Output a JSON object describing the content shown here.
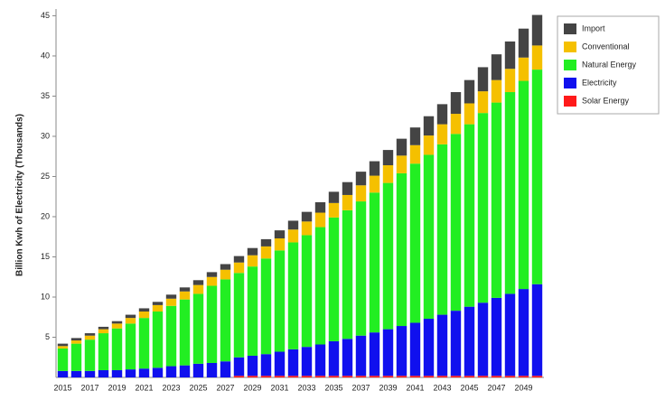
{
  "chart_data": {
    "type": "stacked_bar",
    "y_label": "Billion Kwh of Electricity (Thousands)",
    "categories": [
      "2015",
      null,
      "2017",
      null,
      "2019",
      null,
      "2021",
      null,
      "2023",
      null,
      "2025",
      null,
      "2027",
      null,
      "2029",
      null,
      "2031",
      null,
      "2033",
      null,
      "2035",
      null,
      "2037",
      null,
      "2039",
      null,
      "2041",
      null,
      "2043",
      null,
      "2045",
      null,
      "2047",
      null,
      "2049",
      null
    ],
    "series": [
      {
        "name": "Solar Energy",
        "color": "#ff1a1a",
        "values": [
          0,
          0,
          0,
          0,
          0,
          0,
          0,
          0,
          0,
          0,
          0,
          0,
          0,
          0.2,
          0.2,
          0.2,
          0.2,
          0.2,
          0.2,
          0.2,
          0.2,
          0.2,
          0.2,
          0.2,
          0.2,
          0.2,
          0.2,
          0.2,
          0.2,
          0.2,
          0.2,
          0.2,
          0.2,
          0.2,
          0.2,
          0.2
        ]
      },
      {
        "name": "Electricity",
        "color": "#1010ee",
        "values": [
          0.8,
          0.8,
          0.8,
          0.9,
          0.9,
          1.0,
          1.1,
          1.2,
          1.4,
          1.5,
          1.7,
          1.8,
          2.0,
          2.3,
          2.5,
          2.7,
          3.0,
          3.3,
          3.6,
          3.9,
          4.3,
          4.6,
          5.0,
          5.4,
          5.8,
          6.2,
          6.6,
          7.1,
          7.6,
          8.1,
          8.6,
          9.1,
          9.7,
          10.2,
          10.8,
          11.4
        ]
      },
      {
        "name": "Natural Energy",
        "color": "#22ee22",
        "values": [
          2.8,
          3.4,
          3.9,
          4.6,
          5.2,
          5.7,
          6.3,
          7.0,
          7.5,
          8.2,
          8.7,
          9.6,
          10.2,
          10.5,
          11.1,
          11.9,
          12.6,
          13.3,
          13.9,
          14.6,
          15.4,
          16.0,
          16.7,
          17.4,
          18.2,
          19.0,
          19.8,
          20.4,
          21.2,
          22.0,
          22.7,
          23.6,
          24.3,
          25.1,
          25.9,
          26.7
        ]
      },
      {
        "name": "Conventional",
        "color": "#f5c000",
        "values": [
          0.3,
          0.4,
          0.5,
          0.5,
          0.6,
          0.7,
          0.8,
          0.8,
          0.9,
          1.0,
          1.1,
          1.1,
          1.2,
          1.3,
          1.4,
          1.5,
          1.5,
          1.6,
          1.7,
          1.8,
          1.8,
          1.9,
          2.0,
          2.1,
          2.2,
          2.2,
          2.3,
          2.4,
          2.5,
          2.5,
          2.6,
          2.7,
          2.8,
          2.9,
          2.9,
          3.0
        ]
      },
      {
        "name": "Import",
        "color": "#444444",
        "values": [
          0.3,
          0.3,
          0.3,
          0.3,
          0.3,
          0.4,
          0.4,
          0.4,
          0.5,
          0.5,
          0.6,
          0.6,
          0.7,
          0.8,
          0.9,
          0.9,
          1.0,
          1.1,
          1.2,
          1.3,
          1.4,
          1.6,
          1.7,
          1.8,
          1.9,
          2.1,
          2.2,
          2.4,
          2.5,
          2.7,
          2.9,
          3.0,
          3.2,
          3.4,
          3.6,
          3.8
        ]
      }
    ],
    "ylim": [
      0,
      45.5
    ],
    "yticks": [
      5,
      10,
      15,
      20,
      25,
      30,
      35,
      40,
      45
    ]
  }
}
